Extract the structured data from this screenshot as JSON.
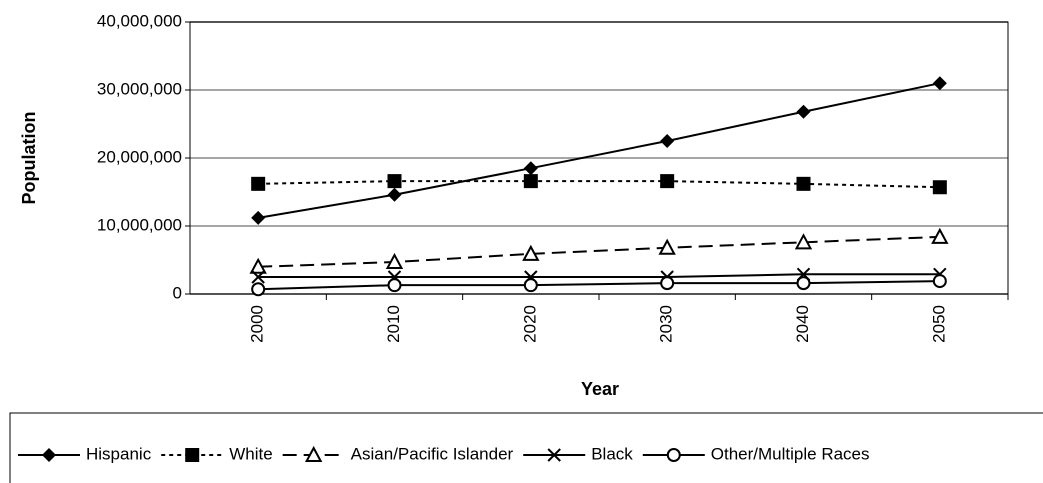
{
  "chart_data": {
    "type": "line",
    "x_label": "Year",
    "y_label": "Population",
    "categories": [
      "2000",
      "2010",
      "2020",
      "2030",
      "2040",
      "2050"
    ],
    "series": [
      {
        "name": "Hispanic",
        "color": "#000000",
        "marker": "diamond",
        "dash": "solid",
        "values": [
          11200000,
          14600000,
          18500000,
          22500000,
          26800000,
          31000000
        ]
      },
      {
        "name": "White",
        "color": "#000000",
        "marker": "square",
        "dash": "dotted",
        "values": [
          16200000,
          16600000,
          16600000,
          16600000,
          16200000,
          15700000
        ]
      },
      {
        "name": "Asian/Pacific Islander",
        "color": "#000000",
        "marker": "triangle",
        "dash": "dashed",
        "values": [
          4000000,
          4700000,
          5900000,
          6800000,
          7600000,
          8400000
        ]
      },
      {
        "name": "Black",
        "color": "#000000",
        "marker": "x",
        "dash": "solid",
        "values": [
          2500000,
          2500000,
          2500000,
          2500000,
          2900000,
          2900000
        ]
      },
      {
        "name": "Other/Multiple Races",
        "color": "#000000",
        "marker": "circle",
        "dash": "solid",
        "values": [
          700000,
          1300000,
          1300000,
          1600000,
          1600000,
          1900000
        ]
      }
    ],
    "ylim": [
      0,
      40000000
    ],
    "yticks": [
      0,
      {
        "value": 10000000,
        "label": "10,000,000"
      },
      {
        "value": 20000000,
        "label": "20,000,000"
      },
      {
        "value": 30000000,
        "label": "30,000,000"
      },
      {
        "value": 40000000,
        "label": "40,000,000"
      }
    ],
    "grid": true,
    "legend": "bottom"
  }
}
